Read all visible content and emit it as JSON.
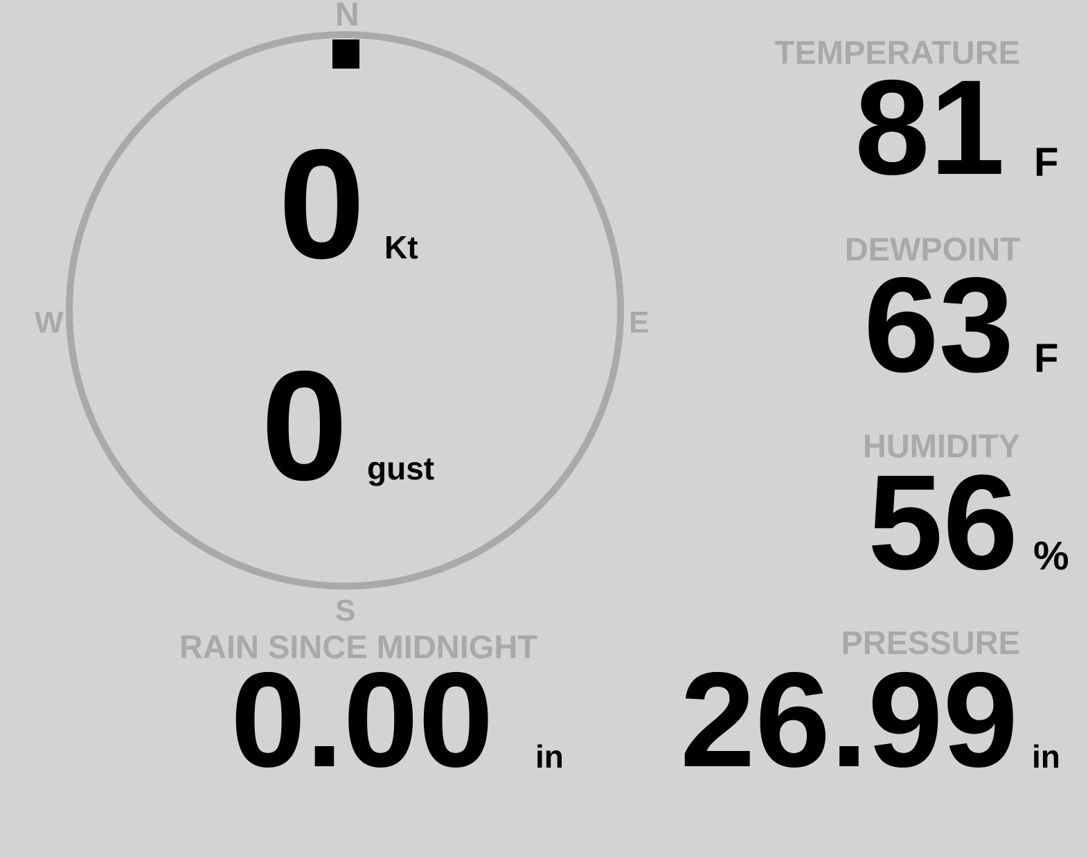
{
  "colors": {
    "background": "#d3d3d3",
    "label": "#a9a9a9",
    "value": "#000000",
    "compass_ring": "#a9a9a9",
    "direction_marker": "#000000"
  },
  "wind": {
    "compass": {
      "n": "N",
      "e": "E",
      "s": "S",
      "w": "W"
    },
    "direction_deg": 0,
    "speed": "0",
    "speed_unit": "Kt",
    "gust": "0",
    "gust_unit": "gust"
  },
  "temperature": {
    "label": "TEMPERATURE",
    "value": "81",
    "unit": "F"
  },
  "dewpoint": {
    "label": "DEWPOINT",
    "value": "63",
    "unit": "F"
  },
  "humidity": {
    "label": "HUMIDITY",
    "value": "56",
    "unit": "%"
  },
  "pressure": {
    "label": "PRESSURE",
    "value": "26.99",
    "unit": "in"
  },
  "rain": {
    "label": "RAIN SINCE MIDNIGHT",
    "value": "0.00",
    "unit": "in"
  }
}
